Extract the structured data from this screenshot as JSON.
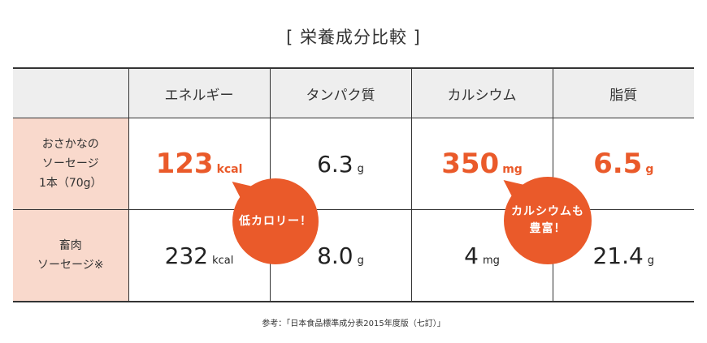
{
  "title": "[ 栄養成分比較 ]",
  "table": {
    "headers": [
      "",
      "エネルギー",
      "タンパク質",
      "カルシウム",
      "脂質"
    ],
    "rows": [
      {
        "label_lines": [
          "おさかなの",
          "ソーセージ",
          "1本（70g）"
        ],
        "cells": [
          {
            "value": "123",
            "unit": "kcal",
            "highlight": true
          },
          {
            "value": "6.3",
            "unit": "g",
            "highlight": false
          },
          {
            "value": "350",
            "unit": "mg",
            "highlight": true
          },
          {
            "value": "6.5",
            "unit": "g",
            "highlight": true
          }
        ]
      },
      {
        "label_lines": [
          "畜肉",
          "ソーセージ※"
        ],
        "cells": [
          {
            "value": "232",
            "unit": "kcal",
            "highlight": false
          },
          {
            "value": "8.0",
            "unit": "g",
            "highlight": false
          },
          {
            "value": "4",
            "unit": "mg",
            "highlight": false
          },
          {
            "value": "21.4",
            "unit": "g",
            "highlight": false
          }
        ]
      }
    ]
  },
  "bubbles": {
    "low_calorie": "低カロリー！",
    "calcium_lines": [
      "カルシウムも",
      "豊富！"
    ]
  },
  "reference": "参考：「日本食品標準成分表2015年度版（七訂）」",
  "colors": {
    "accent": "#ea5a2a",
    "row_header_bg": "#f9d9cc",
    "header_bg": "#eeeeee"
  }
}
